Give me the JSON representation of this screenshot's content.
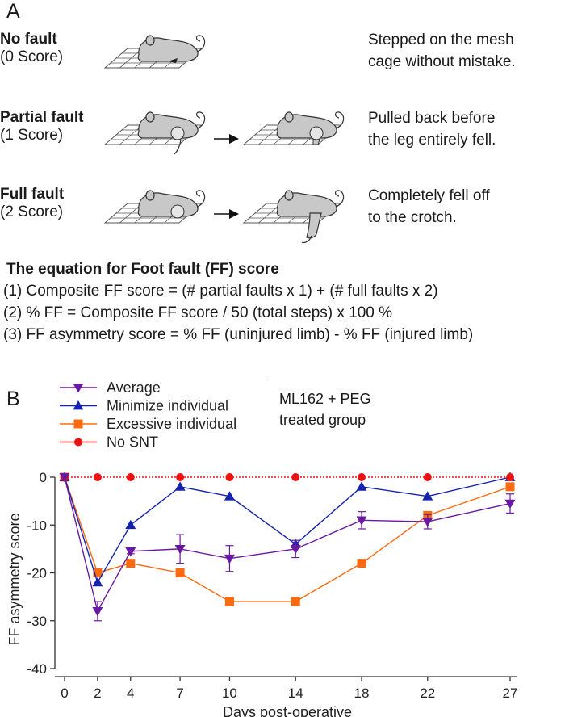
{
  "panel_a": {
    "letter": "A",
    "rows": [
      {
        "title": "No fault",
        "score": "(0 Score)",
        "desc1": "Stepped on the mesh",
        "desc2": "cage without mistake."
      },
      {
        "title": "Partial fault",
        "score": "(1 Score)",
        "desc1": "Pulled back before",
        "desc2": "the leg entirely fell."
      },
      {
        "title": "Full fault",
        "score": "(2 Score)",
        "desc1": "Completely fell off",
        "desc2": "to the crotch."
      }
    ],
    "equation_title": "The equation for Foot fault (FF) score",
    "equations": [
      "(1) Composite FF score = (# partial faults x 1) + (# full faults x 2)",
      "(2) % FF = Composite FF score / 50 (total steps) x 100 %",
      "(3) FF asymmetry score = % FF (uninjured limb) - % FF (injured limb)"
    ]
  },
  "panel_b": {
    "letter": "B",
    "group_label_1": "ML162 + PEG",
    "group_label_2": "treated group"
  },
  "colors": {
    "average": "#6a1aa0",
    "minimize": "#1522b0",
    "excessive": "#ff6a10",
    "no_snt": "#ee1111",
    "mouse_fill": "#c8c8c8"
  },
  "chart_data": {
    "type": "line",
    "xlabel": "Days post-operative",
    "ylabel": "FF asymmetry score",
    "x": [
      0,
      2,
      4,
      7,
      10,
      14,
      18,
      22,
      27
    ],
    "xticks": [
      "0",
      "2",
      "4",
      "7",
      "10",
      "14",
      "18",
      "22",
      "27"
    ],
    "ylim": [
      -40,
      0
    ],
    "yticks": [
      "0",
      "-10",
      "-20",
      "-30",
      "-40"
    ],
    "ytick_values": [
      0,
      -10,
      -20,
      -30,
      -40
    ],
    "grid": false,
    "legend_position": "top-left",
    "series": [
      {
        "name": "Average",
        "marker": "triangle-down",
        "values": [
          0,
          -28,
          -15.5,
          -15,
          -17,
          -15,
          -9,
          -9.3,
          -5.5
        ],
        "error": [
          0,
          2,
          0.5,
          3,
          2.7,
          1.8,
          1.8,
          1.5,
          2
        ]
      },
      {
        "name": "Minimize individual",
        "marker": "triangle-up",
        "values": [
          0,
          -22,
          -10,
          -2,
          -4,
          -14,
          -2,
          -4,
          0
        ]
      },
      {
        "name": "Excessive individual",
        "marker": "square",
        "values": [
          0,
          -20,
          -18,
          -20,
          -26,
          -26,
          -18,
          -8,
          -2
        ]
      },
      {
        "name": "No SNT",
        "marker": "circle",
        "values": [
          0,
          0,
          0,
          0,
          0,
          0,
          0,
          0,
          0
        ]
      }
    ]
  }
}
